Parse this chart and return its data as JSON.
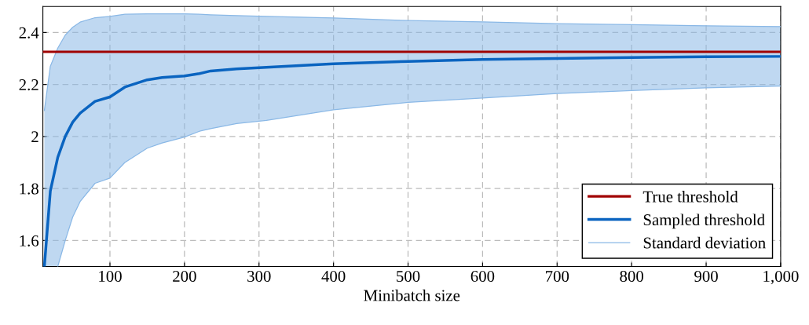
{
  "chart_data": {
    "type": "line",
    "xlabel": "Minibatch size",
    "x": [
      12,
      20,
      30,
      40,
      50,
      60,
      80,
      100,
      120,
      150,
      170,
      200,
      220,
      235,
      270,
      310,
      400,
      500,
      600,
      700,
      800,
      900,
      1000
    ],
    "series": [
      {
        "name": "Sampled threshold",
        "color": "#0a64c0",
        "values": [
          1.5,
          1.79,
          1.92,
          2.0,
          2.055,
          2.09,
          2.135,
          2.152,
          2.19,
          2.218,
          2.227,
          2.233,
          2.242,
          2.252,
          2.26,
          2.266,
          2.28,
          2.289,
          2.296,
          2.3,
          2.304,
          2.307,
          2.308
        ],
        "lower": [
          1.5,
          1.5,
          1.5,
          1.6,
          1.69,
          1.75,
          1.82,
          1.84,
          1.9,
          1.955,
          1.975,
          1.998,
          2.02,
          2.03,
          2.05,
          2.062,
          2.103,
          2.131,
          2.148,
          2.165,
          2.177,
          2.187,
          2.194
        ],
        "upper": [
          2.1,
          2.27,
          2.34,
          2.39,
          2.42,
          2.44,
          2.457,
          2.462,
          2.47,
          2.472,
          2.472,
          2.472,
          2.47,
          2.468,
          2.465,
          2.462,
          2.456,
          2.446,
          2.441,
          2.434,
          2.43,
          2.426,
          2.423
        ]
      },
      {
        "name": "Standard deviation",
        "color": "#8ab8e6",
        "values": [
          2.1,
          2.27,
          2.34,
          2.39,
          2.42,
          2.44,
          2.457,
          2.462,
          2.47,
          2.472,
          2.472,
          2.472,
          2.47,
          2.468,
          2.465,
          2.462,
          2.456,
          2.446,
          2.441,
          2.434,
          2.43,
          2.426,
          2.423
        ]
      },
      {
        "color": "#8ab8e6",
        "values": [
          null,
          null,
          1.5,
          1.6,
          1.69,
          1.75,
          1.82,
          1.84,
          1.9,
          1.955,
          1.975,
          1.998,
          2.02,
          2.03,
          2.05,
          2.062,
          2.103,
          2.131,
          2.148,
          2.165,
          2.177,
          2.187,
          2.194
        ]
      }
    ],
    "ref_lines": [
      {
        "axis": "y",
        "value": 2.326,
        "label": "True threshold",
        "color": "#a00000"
      }
    ],
    "xlim": [
      10,
      1000
    ],
    "ylim": [
      1.5,
      2.5
    ],
    "xticks": [
      100,
      200,
      300,
      400,
      500,
      600,
      700,
      800,
      900,
      {
        "value": 1000,
        "label": "1,000"
      }
    ],
    "yticks": [
      1.6,
      1.8,
      2,
      2.2,
      2.4
    ],
    "grid": true,
    "legend": "bottom right",
    "line_style": "solid",
    "marker": "none"
  }
}
